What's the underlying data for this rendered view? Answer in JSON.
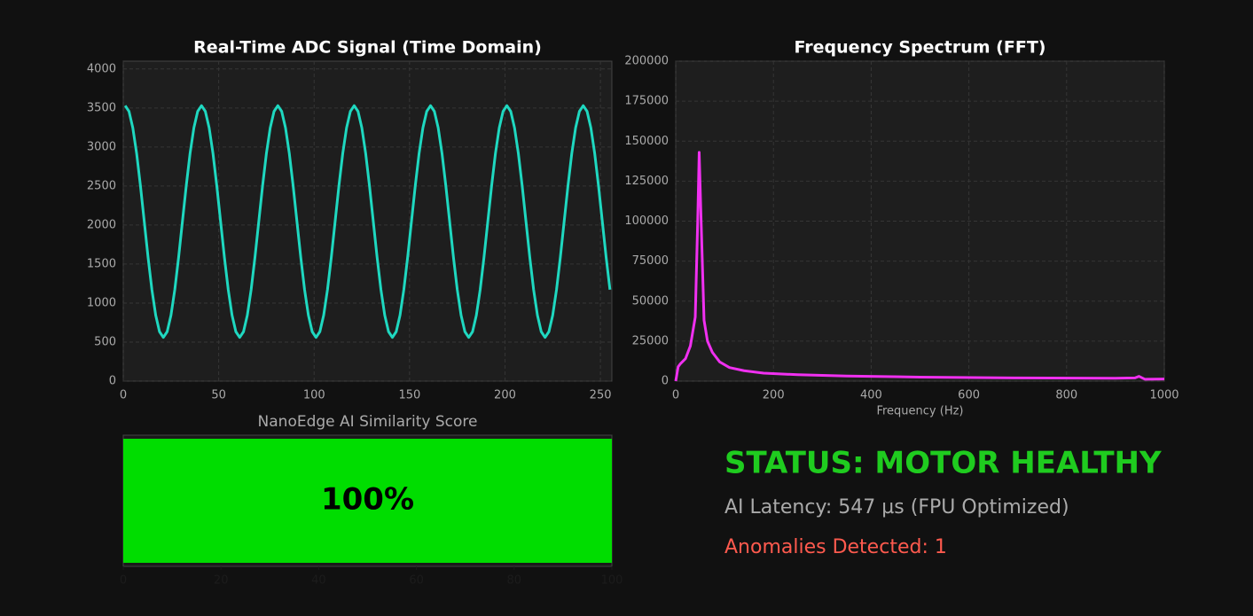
{
  "chart_data": [
    {
      "type": "line",
      "title": "Real-Time ADC Signal (Time Domain)",
      "color": "#1fd8c0",
      "grid": true,
      "xlim": [
        0,
        256
      ],
      "xticks": [
        0,
        50,
        100,
        150,
        200,
        250
      ],
      "ylim": [
        0,
        4100
      ],
      "yticks": [
        0,
        500,
        1000,
        1500,
        2000,
        2500,
        3000,
        3500,
        4000
      ],
      "x": [
        1,
        3,
        5,
        7,
        9,
        11,
        13,
        15,
        17,
        19,
        21,
        23,
        25,
        27,
        29,
        31,
        33,
        35,
        37,
        39,
        41,
        43,
        45,
        47,
        49,
        51,
        53,
        55,
        57,
        59,
        61,
        63,
        65,
        67,
        69,
        71,
        73,
        75,
        77,
        79,
        81,
        83,
        85,
        87,
        89,
        91,
        93,
        95,
        97,
        99,
        101,
        103,
        105,
        107,
        109,
        111,
        113,
        115,
        117,
        119,
        121,
        123,
        125,
        127,
        129,
        131,
        133,
        135,
        137,
        139,
        141,
        143,
        145,
        147,
        149,
        151,
        153,
        155,
        157,
        159,
        161,
        163,
        165,
        167,
        169,
        171,
        173,
        175,
        177,
        179,
        181,
        183,
        185,
        187,
        189,
        191,
        193,
        195,
        197,
        199,
        201,
        203,
        205,
        207,
        209,
        211,
        213,
        215,
        217,
        219,
        221,
        223,
        225,
        227,
        229,
        231,
        233,
        235,
        237,
        239,
        241,
        243,
        245,
        247,
        249,
        251,
        253,
        255
      ],
      "values": [
        3530,
        3457,
        3246,
        2918,
        2504,
        2045,
        1586,
        1172,
        844,
        633,
        560,
        633,
        844,
        1172,
        1586,
        2045,
        2504,
        2918,
        3246,
        3457,
        3530,
        3457,
        3246,
        2918,
        2504,
        2045,
        1586,
        1172,
        844,
        633,
        560,
        633,
        844,
        1172,
        1586,
        2045,
        2504,
        2918,
        3246,
        3457,
        3530,
        3457,
        3246,
        2918,
        2504,
        2045,
        1586,
        1172,
        844,
        633,
        560,
        633,
        844,
        1172,
        1586,
        2045,
        2504,
        2918,
        3246,
        3457,
        3530,
        3457,
        3246,
        2918,
        2504,
        2045,
        1586,
        1172,
        844,
        633,
        560,
        633,
        844,
        1172,
        1586,
        2045,
        2504,
        2918,
        3246,
        3457,
        3530,
        3457,
        3246,
        2918,
        2504,
        2045,
        1586,
        1172,
        844,
        633,
        560,
        633,
        844,
        1172,
        1586,
        2045,
        2504,
        2918,
        3246,
        3457,
        3530,
        3457,
        3246,
        2918,
        2504,
        2045,
        1586,
        1172,
        844,
        633,
        560,
        633,
        844,
        1172,
        1586,
        2045,
        2504,
        2918,
        3246,
        3457,
        3530,
        3457,
        3246,
        2918,
        2504,
        2045,
        1586,
        1172
      ]
    },
    {
      "type": "line",
      "title": "Frequency Spectrum (FFT)",
      "xlabel": "Frequency (Hz)",
      "color": "#f030f0",
      "grid": true,
      "xlim": [
        0,
        1000
      ],
      "xticks": [
        0,
        200,
        400,
        600,
        800,
        1000
      ],
      "ylim": [
        0,
        200000
      ],
      "yticks": [
        0,
        25000,
        50000,
        75000,
        100000,
        125000,
        150000,
        175000,
        200000
      ],
      "x": [
        0,
        5,
        10,
        20,
        30,
        40,
        45,
        48,
        52,
        58,
        65,
        75,
        90,
        110,
        140,
        180,
        250,
        350,
        500,
        700,
        900,
        940,
        948,
        960,
        1000
      ],
      "values": [
        0,
        9000,
        11000,
        14000,
        22000,
        40000,
        100000,
        143000,
        100000,
        38000,
        25000,
        18000,
        12000,
        8500,
        6500,
        5000,
        4000,
        3200,
        2500,
        2000,
        1800,
        2000,
        3000,
        1200,
        1300
      ]
    },
    {
      "type": "bar",
      "orientation": "horizontal",
      "title": "NanoEdge AI Similarity Score",
      "color": "#00dd00",
      "xlim": [
        0,
        100
      ],
      "xticks": [
        0,
        20,
        40,
        60,
        80,
        100
      ],
      "values": [
        100
      ],
      "value_labels": [
        "100%"
      ]
    }
  ],
  "status": {
    "title": "STATUS: MOTOR HEALTHY",
    "latency": "AI Latency: 547 µs (FPU Optimized)",
    "anomalies": "Anomalies Detected: 1"
  }
}
